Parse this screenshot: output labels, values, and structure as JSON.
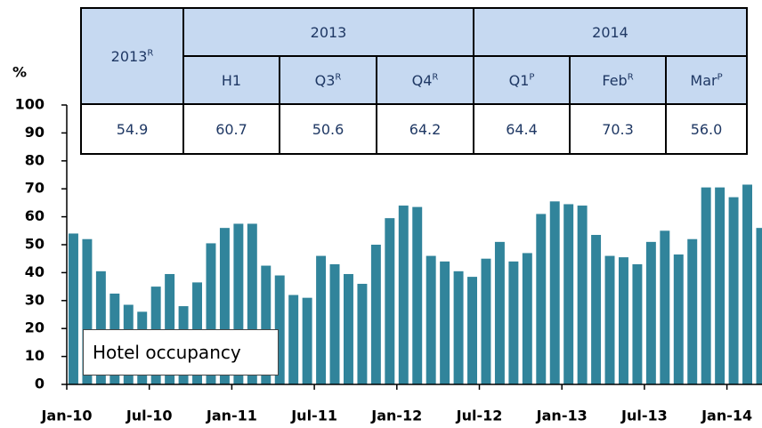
{
  "chart_data": {
    "type": "bar",
    "y_label": "%",
    "annotation": "Hotel occupancy",
    "color": "#31849b",
    "categories": [
      "Jan-10",
      null,
      null,
      null,
      null,
      null,
      "Jul-10",
      null,
      null,
      null,
      null,
      null,
      "Jan-11",
      null,
      null,
      null,
      null,
      null,
      "Jul-11",
      null,
      null,
      null,
      null,
      null,
      "Jan-12",
      null,
      null,
      null,
      null,
      null,
      "Jul-12",
      null,
      null,
      null,
      null,
      null,
      "Jan-13",
      null,
      null,
      null,
      null,
      null,
      "Jul-13",
      null,
      null,
      null,
      null,
      null,
      "Jan-14",
      null,
      null
    ],
    "values": [
      54,
      52,
      40.5,
      32.5,
      28.5,
      26,
      35,
      39.5,
      28,
      36.5,
      50.5,
      56,
      57.5,
      57.5,
      42.5,
      39,
      32,
      31,
      46,
      43,
      39.5,
      36,
      50,
      59.5,
      64,
      63.5,
      46,
      44,
      40.5,
      38.5,
      45,
      51,
      44,
      47,
      61,
      65.5,
      64.5,
      64,
      53.5,
      46,
      45.5,
      43,
      51,
      55,
      46.5,
      52,
      70.5,
      70.5,
      67,
      71.5,
      56
    ],
    "ylim": [
      0,
      100
    ],
    "yticks": [
      0,
      10,
      20,
      30,
      40,
      50,
      60,
      70,
      80,
      90,
      100
    ]
  },
  "table": {
    "header_top": [
      {
        "text": "2013",
        "sup": "R"
      },
      {
        "text": "2013"
      },
      {
        "text": "2014"
      }
    ],
    "header_sub": [
      {
        "text": "H1"
      },
      {
        "text": "Q3",
        "sup": "R"
      },
      {
        "text": "Q4",
        "sup": "R"
      },
      {
        "text": "Q1",
        "sup": "P"
      },
      {
        "text": "Feb",
        "sup": "R"
      },
      {
        "text": "Mar",
        "sup": "P"
      }
    ],
    "values": [
      "54.9",
      "60.7",
      "50.6",
      "64.2",
      "64.4",
      "70.3",
      "56.0"
    ]
  }
}
